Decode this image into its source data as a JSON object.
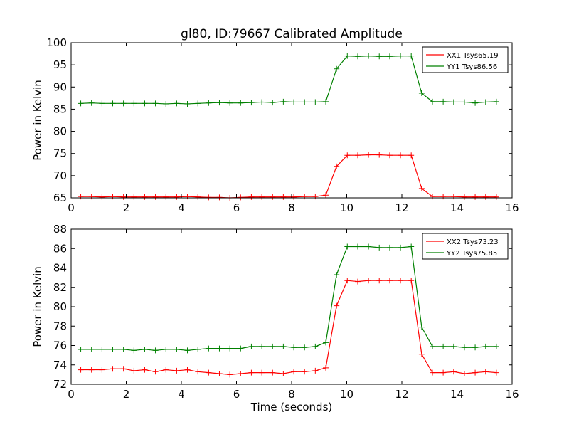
{
  "title": "gl80, ID:79667 Calibrated Amplitude",
  "chart_data": [
    {
      "type": "line",
      "ylabel": "Power in Kelvin",
      "xlabel": "",
      "xlim": [
        0,
        16
      ],
      "ylim": [
        65,
        100
      ],
      "xticks": [
        "0",
        "2",
        "4",
        "6",
        "8",
        "10",
        "12",
        "14",
        "16"
      ],
      "yticks": [
        "65",
        "70",
        "75",
        "80",
        "85",
        "90",
        "95",
        "100"
      ],
      "grid": false,
      "legend_position": "top-right",
      "x": [
        0.35,
        0.74,
        1.12,
        1.51,
        1.9,
        2.28,
        2.67,
        3.06,
        3.44,
        3.83,
        4.22,
        4.6,
        4.99,
        5.38,
        5.76,
        6.15,
        6.54,
        6.92,
        7.31,
        7.7,
        8.08,
        8.47,
        8.86,
        9.24,
        9.63,
        10.02,
        10.4,
        10.79,
        11.18,
        11.56,
        11.95,
        12.34,
        12.72,
        13.11,
        13.5,
        13.88,
        14.27,
        14.66,
        15.04,
        15.43
      ],
      "series": [
        {
          "name": "XX1 Tsys65.19",
          "color": "#ff0000",
          "values": [
            65.3,
            65.3,
            65.2,
            65.3,
            65.2,
            65.2,
            65.2,
            65.2,
            65.2,
            65.2,
            65.3,
            65.2,
            65.1,
            65.1,
            65.0,
            65.1,
            65.2,
            65.2,
            65.2,
            65.2,
            65.2,
            65.3,
            65.3,
            65.6,
            72.1,
            74.6,
            74.6,
            74.7,
            74.7,
            74.6,
            74.6,
            74.6,
            67.1,
            65.3,
            65.3,
            65.3,
            65.2,
            65.2,
            65.2,
            65.2
          ]
        },
        {
          "name": "YY1 Tsys86.56",
          "color": "#008000",
          "values": [
            86.3,
            86.4,
            86.3,
            86.3,
            86.3,
            86.3,
            86.3,
            86.3,
            86.2,
            86.3,
            86.2,
            86.3,
            86.4,
            86.5,
            86.4,
            86.4,
            86.5,
            86.6,
            86.5,
            86.7,
            86.6,
            86.6,
            86.6,
            86.7,
            94.1,
            97.0,
            96.9,
            97.0,
            96.9,
            96.9,
            97.0,
            97.0,
            88.6,
            86.7,
            86.7,
            86.6,
            86.6,
            86.4,
            86.6,
            86.7
          ]
        }
      ]
    },
    {
      "type": "line",
      "ylabel": "Power in Kelvin",
      "xlabel": "Time (seconds)",
      "xlim": [
        0,
        16
      ],
      "ylim": [
        72,
        88
      ],
      "xticks": [
        "0",
        "2",
        "4",
        "6",
        "8",
        "10",
        "12",
        "14",
        "16"
      ],
      "yticks": [
        "72",
        "74",
        "76",
        "78",
        "80",
        "82",
        "84",
        "86",
        "88"
      ],
      "grid": false,
      "legend_position": "top-right",
      "x": [
        0.35,
        0.74,
        1.12,
        1.51,
        1.9,
        2.28,
        2.67,
        3.06,
        3.44,
        3.83,
        4.22,
        4.6,
        4.99,
        5.38,
        5.76,
        6.15,
        6.54,
        6.92,
        7.31,
        7.7,
        8.08,
        8.47,
        8.86,
        9.24,
        9.63,
        10.02,
        10.4,
        10.79,
        11.18,
        11.56,
        11.95,
        12.34,
        12.72,
        13.11,
        13.5,
        13.88,
        14.27,
        14.66,
        15.04,
        15.43
      ],
      "series": [
        {
          "name": "XX2 Tsys73.23",
          "color": "#ff0000",
          "values": [
            73.5,
            73.5,
            73.5,
            73.6,
            73.6,
            73.4,
            73.5,
            73.3,
            73.5,
            73.4,
            73.5,
            73.3,
            73.2,
            73.1,
            73.0,
            73.1,
            73.2,
            73.2,
            73.2,
            73.1,
            73.3,
            73.3,
            73.4,
            73.7,
            80.1,
            82.7,
            82.6,
            82.7,
            82.7,
            82.7,
            82.7,
            82.7,
            75.1,
            73.2,
            73.2,
            73.3,
            73.1,
            73.2,
            73.3,
            73.2
          ]
        },
        {
          "name": "YY2 Tsys75.85",
          "color": "#008000",
          "values": [
            75.6,
            75.6,
            75.6,
            75.6,
            75.6,
            75.5,
            75.6,
            75.5,
            75.6,
            75.6,
            75.5,
            75.6,
            75.7,
            75.7,
            75.7,
            75.7,
            75.9,
            75.9,
            75.9,
            75.9,
            75.8,
            75.8,
            75.9,
            76.3,
            83.3,
            86.2,
            86.2,
            86.2,
            86.1,
            86.1,
            86.1,
            86.2,
            77.9,
            75.9,
            75.9,
            75.9,
            75.8,
            75.8,
            75.9,
            75.9
          ]
        }
      ]
    }
  ]
}
